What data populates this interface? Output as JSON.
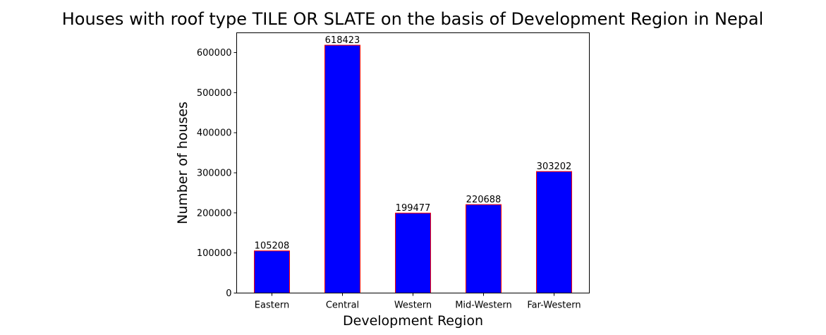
{
  "chart_data": {
    "type": "bar",
    "title": "Houses with roof type TILE OR SLATE on the basis of Development Region in Nepal",
    "xlabel": "Development Region",
    "ylabel": "Number of houses",
    "categories": [
      "Eastern",
      "Central",
      "Western",
      "Mid-Western",
      "Far-Western"
    ],
    "values": [
      105208,
      618423,
      199477,
      220688,
      303202
    ],
    "data_labels": [
      "105208",
      "618423",
      "199477",
      "220688",
      "303202"
    ],
    "ylim": [
      0,
      649344
    ],
    "yticks": [
      0,
      100000,
      200000,
      300000,
      400000,
      500000,
      600000
    ],
    "ytick_labels": [
      "0",
      "100000",
      "200000",
      "300000",
      "400000",
      "500000",
      "600000"
    ],
    "bar_color": "#0000ff",
    "bar_edge_color": "#ff0000",
    "grid": false,
    "legend": "none"
  }
}
